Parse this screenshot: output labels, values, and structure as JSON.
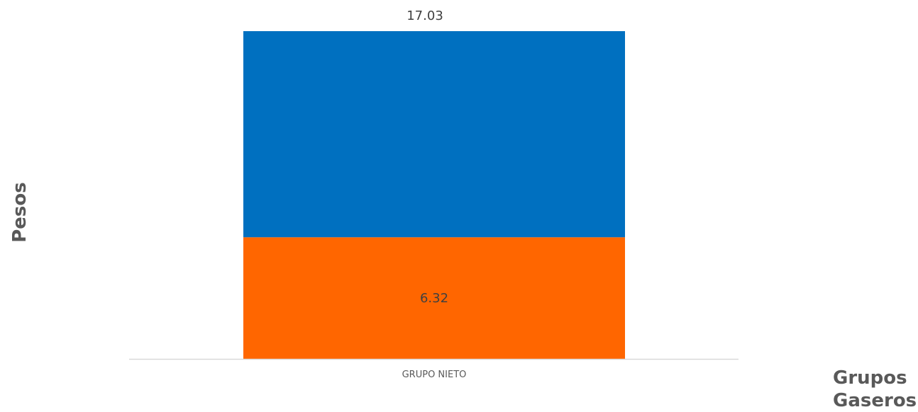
{
  "chart_data": {
    "type": "bar",
    "stacked": true,
    "categories": [
      "GRUPO NIETO"
    ],
    "series": [
      {
        "values": [
          6.32
        ],
        "color": "#FF6600"
      },
      {
        "values": [
          10.71
        ],
        "color": "#0070C0"
      }
    ],
    "data_labels": {
      "segment": "6.32",
      "total": "17.03"
    },
    "totals": [
      17.03
    ],
    "xlabel": [
      "Grupos",
      "Gaseros"
    ],
    "ylabel": "Pesos",
    "ylim": [
      0,
      17.03
    ],
    "grid": false,
    "legend": "none"
  }
}
